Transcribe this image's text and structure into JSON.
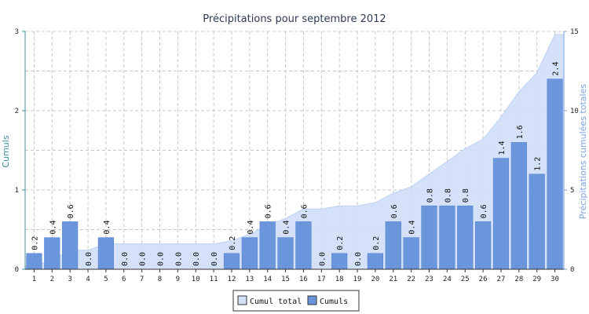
{
  "colors": {
    "bar": "#6b96dc",
    "bar_stroke": "#4f7fcf",
    "area_fill": "#d2e0f8",
    "area_stroke": "#b9cff3",
    "left_axis": "#3e8fa0",
    "right_axis": "#7aa3e3",
    "grid": "#c8c8c8"
  },
  "chart_data": {
    "type": "bar",
    "title": "Précipitations pour septembre 2012",
    "ylabel": "Cumuls",
    "y2label": "Précipitations cumulées totales",
    "ylim": [
      0,
      3
    ],
    "y2lim": [
      0,
      15
    ],
    "yticks": [
      "0",
      "1",
      "2",
      "3"
    ],
    "y2ticks": [
      "0",
      "5",
      "10",
      "15"
    ],
    "grid": true,
    "legend_position": "bottom-center",
    "categories": [
      "1",
      "2",
      "3",
      "4",
      "5",
      "6",
      "7",
      "8",
      "9",
      "10",
      "11",
      "12",
      "13",
      "14",
      "15",
      "16",
      "17",
      "18",
      "19",
      "20",
      "21",
      "22",
      "23",
      "24",
      "25",
      "26",
      "27",
      "28",
      "29",
      "30"
    ],
    "series": [
      {
        "name": "Cumuls",
        "kind": "bar",
        "axis": "left",
        "values": [
          0.2,
          0.4,
          0.6,
          0.0,
          0.4,
          0.0,
          0.0,
          0.0,
          0.0,
          0.0,
          0.0,
          0.2,
          0.4,
          0.6,
          0.4,
          0.6,
          0.0,
          0.2,
          0.0,
          0.2,
          0.6,
          0.4,
          0.8,
          0.8,
          0.8,
          0.6,
          1.4,
          1.6,
          1.2,
          2.4
        ],
        "labels": [
          "0.2",
          "0.4",
          "0.6",
          "0.0",
          "0.4",
          "0.0",
          "0.0",
          "0.0",
          "0.0",
          "0.0",
          "0.0",
          "0.2",
          "0.4",
          "0.6",
          "0.4",
          "0.6",
          "0.0",
          "0.2",
          "0.0",
          "0.2",
          "0.6",
          "0.4",
          "0.8",
          "0.8",
          "0.8",
          "0.6",
          "1.4",
          "1.6",
          "1.2",
          "2.4"
        ]
      },
      {
        "name": "Cumul total",
        "kind": "area",
        "axis": "right",
        "values": [
          0.2,
          0.6,
          1.2,
          1.2,
          1.6,
          1.6,
          1.6,
          1.6,
          1.6,
          1.6,
          1.6,
          1.8,
          2.2,
          2.8,
          3.2,
          3.8,
          3.8,
          4.0,
          4.0,
          4.2,
          4.8,
          5.2,
          6.0,
          6.8,
          7.6,
          8.2,
          9.6,
          11.2,
          12.4,
          14.8
        ]
      }
    ]
  }
}
